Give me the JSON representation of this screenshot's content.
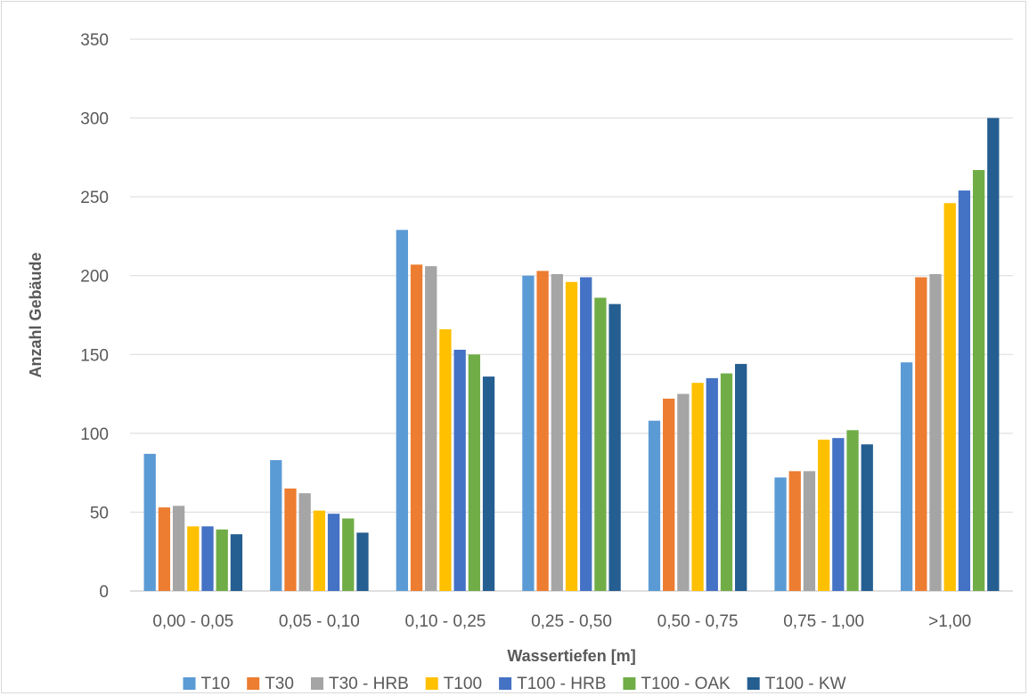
{
  "chart_data": {
    "type": "bar",
    "title": "",
    "xlabel": "Wassertiefen [m]",
    "ylabel": "Anzahl Gebäude",
    "ylim": [
      0,
      350
    ],
    "yticks": [
      0,
      50,
      100,
      150,
      200,
      250,
      300,
      350
    ],
    "grid": true,
    "legend_position": "bottom",
    "categories": [
      "0,00 - 0,05",
      "0,05 - 0,10",
      "0,10 - 0,25",
      "0,25 - 0,50",
      "0,50 - 0,75",
      "0,75 - 1,00",
      ">1,00"
    ],
    "series": [
      {
        "name": "T10",
        "color": "#5b9bd5",
        "values": [
          87,
          83,
          229,
          200,
          108,
          72,
          145
        ]
      },
      {
        "name": "T30",
        "color": "#ed7d31",
        "values": [
          53,
          65,
          207,
          203,
          122,
          76,
          199
        ]
      },
      {
        "name": "T30 - HRB",
        "color": "#a5a5a5",
        "values": [
          54,
          62,
          206,
          201,
          125,
          76,
          201
        ]
      },
      {
        "name": "T100",
        "color": "#ffc000",
        "values": [
          41,
          51,
          166,
          196,
          132,
          96,
          246
        ]
      },
      {
        "name": "T100 - HRB",
        "color": "#4472c4",
        "values": [
          41,
          49,
          153,
          199,
          135,
          97,
          254
        ]
      },
      {
        "name": "T100 - OAK",
        "color": "#70ad47",
        "values": [
          39,
          46,
          150,
          186,
          138,
          102,
          267
        ]
      },
      {
        "name": "T100 - KW",
        "color": "#255e91",
        "values": [
          36,
          37,
          136,
          182,
          144,
          93,
          300
        ]
      }
    ]
  }
}
